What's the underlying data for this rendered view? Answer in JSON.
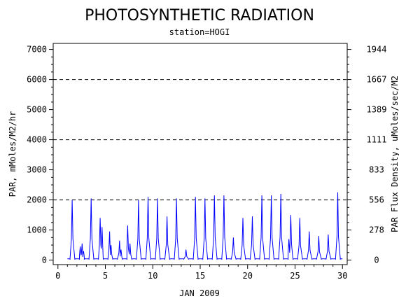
{
  "chart_data": {
    "type": "line",
    "title": "PHOTOSYNTHETIC RADIATION",
    "subtitle": "station=HOGI",
    "xlabel": "JAN 2009",
    "ylabel_left": "PAR, mMoles/M2/hr",
    "ylabel_right": "PAR Flux Density, uMoles/sec/M2",
    "xlim": [
      -0.5,
      30.5
    ],
    "ylim": [
      -150,
      7200
    ],
    "x_ticks": [
      0,
      5,
      10,
      15,
      20,
      25,
      30
    ],
    "x_tick_labels": [
      "0",
      "5",
      "10",
      "15",
      "20",
      "25",
      "30"
    ],
    "y_ticks_left": [
      0,
      1000,
      2000,
      3000,
      4000,
      5000,
      6000,
      7000
    ],
    "y_tick_labels_left": [
      "0",
      "1000",
      "2000",
      "3000",
      "4000",
      "5000",
      "6000",
      "7000"
    ],
    "y_ticks_right_positions": [
      0,
      1000,
      2000,
      3000,
      4000,
      5000,
      6000,
      7000
    ],
    "y_tick_labels_right": [
      "0",
      "278",
      "556",
      "833",
      "1111",
      "1389",
      "1667",
      "1944"
    ],
    "reference_lines": [
      2000,
      4000,
      6000
    ],
    "grid": "dashed at reference lines",
    "series_color": "#0000ff",
    "daily_peaks": [
      {
        "day": 1,
        "peaks": [
          [
            0.5,
            2000
          ]
        ]
      },
      {
        "day": 2,
        "peaks": [
          [
            0.35,
            450
          ],
          [
            0.55,
            550
          ],
          [
            0.7,
            300
          ]
        ]
      },
      {
        "day": 3,
        "peaks": [
          [
            0.5,
            2050
          ]
        ]
      },
      {
        "day": 4,
        "peaks": [
          [
            0.45,
            1400
          ],
          [
            0.65,
            1100
          ]
        ]
      },
      {
        "day": 5,
        "peaks": [
          [
            0.45,
            950
          ],
          [
            0.6,
            500
          ]
        ]
      },
      {
        "day": 6,
        "peaks": [
          [
            0.5,
            650
          ],
          [
            0.65,
            350
          ]
        ]
      },
      {
        "day": 7,
        "peaks": [
          [
            0.35,
            1150
          ],
          [
            0.6,
            550
          ]
        ]
      },
      {
        "day": 8,
        "peaks": [
          [
            0.5,
            2000
          ]
        ]
      },
      {
        "day": 9,
        "peaks": [
          [
            0.5,
            2100
          ]
        ]
      },
      {
        "day": 10,
        "peaks": [
          [
            0.5,
            2050
          ]
        ]
      },
      {
        "day": 11,
        "peaks": [
          [
            0.5,
            1450
          ]
        ]
      },
      {
        "day": 12,
        "peaks": [
          [
            0.5,
            2050
          ]
        ]
      },
      {
        "day": 13,
        "peaks": [
          [
            0.5,
            350
          ]
        ]
      },
      {
        "day": 14,
        "peaks": [
          [
            0.5,
            2100
          ]
        ]
      },
      {
        "day": 15,
        "peaks": [
          [
            0.5,
            2050
          ]
        ]
      },
      {
        "day": 16,
        "peaks": [
          [
            0.5,
            2150
          ]
        ]
      },
      {
        "day": 17,
        "peaks": [
          [
            0.5,
            2150
          ]
        ]
      },
      {
        "day": 18,
        "peaks": [
          [
            0.5,
            750
          ]
        ]
      },
      {
        "day": 19,
        "peaks": [
          [
            0.5,
            1400
          ]
        ]
      },
      {
        "day": 20,
        "peaks": [
          [
            0.5,
            1450
          ]
        ]
      },
      {
        "day": 21,
        "peaks": [
          [
            0.5,
            2150
          ]
        ]
      },
      {
        "day": 22,
        "peaks": [
          [
            0.5,
            2150
          ]
        ]
      },
      {
        "day": 23,
        "peaks": [
          [
            0.5,
            2200
          ]
        ]
      },
      {
        "day": 24,
        "peaks": [
          [
            0.35,
            700
          ],
          [
            0.55,
            1500
          ]
        ]
      },
      {
        "day": 25,
        "peaks": [
          [
            0.5,
            1400
          ]
        ]
      },
      {
        "day": 26,
        "peaks": [
          [
            0.5,
            950
          ]
        ]
      },
      {
        "day": 27,
        "peaks": [
          [
            0.5,
            800
          ]
        ]
      },
      {
        "day": 28,
        "peaks": [
          [
            0.5,
            850
          ]
        ]
      },
      {
        "day": 29,
        "peaks": [
          [
            0.5,
            2250
          ]
        ]
      }
    ]
  }
}
